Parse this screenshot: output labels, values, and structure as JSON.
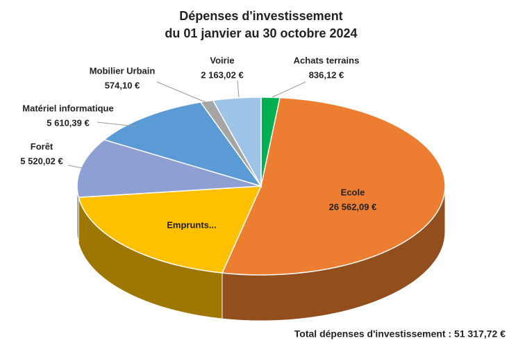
{
  "chart_data": {
    "type": "pie3d",
    "title": "Dépenses d'investissement",
    "subtitle": "du 01 janvier au 30 octobre 2024",
    "categories": [
      "Achats terrains",
      "Ecole",
      "Emprunts...",
      "Forêt",
      "Matériel informatique",
      "Mobilier Urbain",
      "Voirie"
    ],
    "values": [
      836.12,
      26562.09,
      10051.98,
      5520.02,
      5610.39,
      574.1,
      2163.02
    ],
    "value_labels": [
      "836,12 €",
      "26 562,09 €",
      null,
      "5 520,02 €",
      "5 610,39 €",
      "574,10 €",
      "2 163,02 €"
    ],
    "colors": [
      "#00b050",
      "#ed7d31",
      "#ffc000",
      "#8e9fd4",
      "#5b9bd5",
      "#a5a5a5",
      "#9dc3e6"
    ],
    "total": "Total dépenses d'investissement : 51 317,72 €"
  }
}
